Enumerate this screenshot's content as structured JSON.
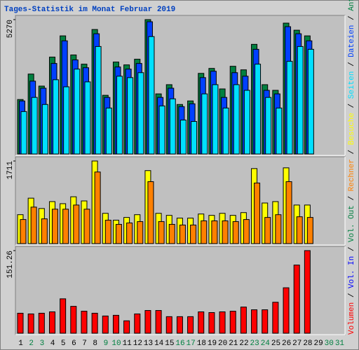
{
  "chart_data": [
    {
      "type": "bar",
      "title": "Tages-Statistik im Monat Februar 2019",
      "ylim": [
        0,
        5270
      ],
      "yticks": [
        5270
      ],
      "series": [
        {
          "name": "Anfragen",
          "color": "#008040",
          "values": [
            2136,
            3135,
            2663,
            3800,
            4633,
            3884,
            3523,
            4882,
            2302,
            3606,
            3495,
            3717,
            5270,
            2358,
            2719,
            1942,
            2081,
            3162,
            3357,
            2552,
            3440,
            3301,
            4300,
            2719,
            2497,
            5132,
            4855,
            4633,
            null,
            null,
            null
          ]
        },
        {
          "name": "Dateien",
          "color": "#0040ff",
          "values": [
            2080,
            2857,
            2580,
            3551,
            4438,
            3689,
            3384,
            4716,
            2219,
            3412,
            3329,
            3551,
            5187,
            2219,
            2580,
            1859,
            1970,
            2996,
            3246,
            2219,
            3190,
            3051,
            4106,
            2497,
            2358,
            4993,
            4716,
            4438,
            null,
            null,
            null
          ]
        },
        {
          "name": "Seiten",
          "color": "#00e0ff",
          "values": [
            1664,
            2219,
            1942,
            2913,
            2635,
            3329,
            2829,
            4216,
            1803,
            3051,
            2996,
            3190,
            4605,
            1886,
            2164,
            1332,
            1276,
            2358,
            2719,
            1803,
            2719,
            2497,
            3523,
            2219,
            1803,
            3634,
            4216,
            4106,
            null,
            null,
            null
          ]
        }
      ]
    },
    {
      "type": "bar",
      "ylim": [
        0,
        1711
      ],
      "yticks": [
        1711
      ],
      "series": [
        {
          "name": "Besuche",
          "color": "#ffff00",
          "values": [
            599,
            941,
            727,
            870,
            827,
            970,
            884,
            1711,
            627,
            485,
            542,
            599,
            1512,
            627,
            585,
            528,
            528,
            613,
            585,
            627,
            585,
            642,
            1554,
            841,
            870,
            1569,
            799,
            799,
            null,
            null,
            null
          ]
        },
        {
          "name": "Rechner",
          "color": "#ff8000",
          "values": [
            499,
            756,
            513,
            713,
            713,
            799,
            713,
            1483,
            485,
            399,
            428,
            456,
            1283,
            456,
            399,
            385,
            385,
            471,
            471,
            471,
            456,
            499,
            1255,
            542,
            599,
            1283,
            556,
            542,
            null,
            null,
            null
          ]
        }
      ]
    },
    {
      "type": "bar",
      "ylim": [
        0,
        151.26
      ],
      "yticks": [
        151.26
      ],
      "categories": [
        "1",
        "2",
        "3",
        "4",
        "5",
        "6",
        "7",
        "8",
        "9",
        "10",
        "11",
        "12",
        "13",
        "14",
        "15",
        "16",
        "17",
        "18",
        "19",
        "20",
        "21",
        "22",
        "23",
        "24",
        "25",
        "26",
        "27",
        "28",
        "29",
        "30",
        "31"
      ],
      "category_colors": [
        "#000000",
        "#008040",
        "#008040",
        "#000000",
        "#000000",
        "#000000",
        "#000000",
        "#000000",
        "#008040",
        "#008040",
        "#000000",
        "#000000",
        "#000000",
        "#000000",
        "#000000",
        "#008040",
        "#008040",
        "#000000",
        "#000000",
        "#000000",
        "#000000",
        "#000000",
        "#008040",
        "#008040",
        "#000000",
        "#000000",
        "#000000",
        "#000000",
        "#000000",
        "#008040",
        "#008040"
      ],
      "series": [
        {
          "name": "Volumen",
          "color": "#ff0000",
          "values": [
            36.6,
            35.3,
            36.6,
            39.1,
            63.0,
            49.2,
            40.3,
            36.6,
            31.5,
            32.8,
            22.7,
            35.3,
            41.6,
            41.6,
            30.3,
            30.3,
            30.3,
            39.1,
            37.8,
            39.1,
            40.3,
            47.9,
            42.9,
            42.9,
            56.7,
            83.2,
            124.8,
            151.26,
            null,
            null,
            null
          ]
        }
      ],
      "extra_legend": [
        {
          "name": "Vol. In",
          "color": "#0000ff"
        },
        {
          "name": "Vol. Out",
          "color": "#008040"
        }
      ],
      "legend_separator": " / "
    }
  ]
}
